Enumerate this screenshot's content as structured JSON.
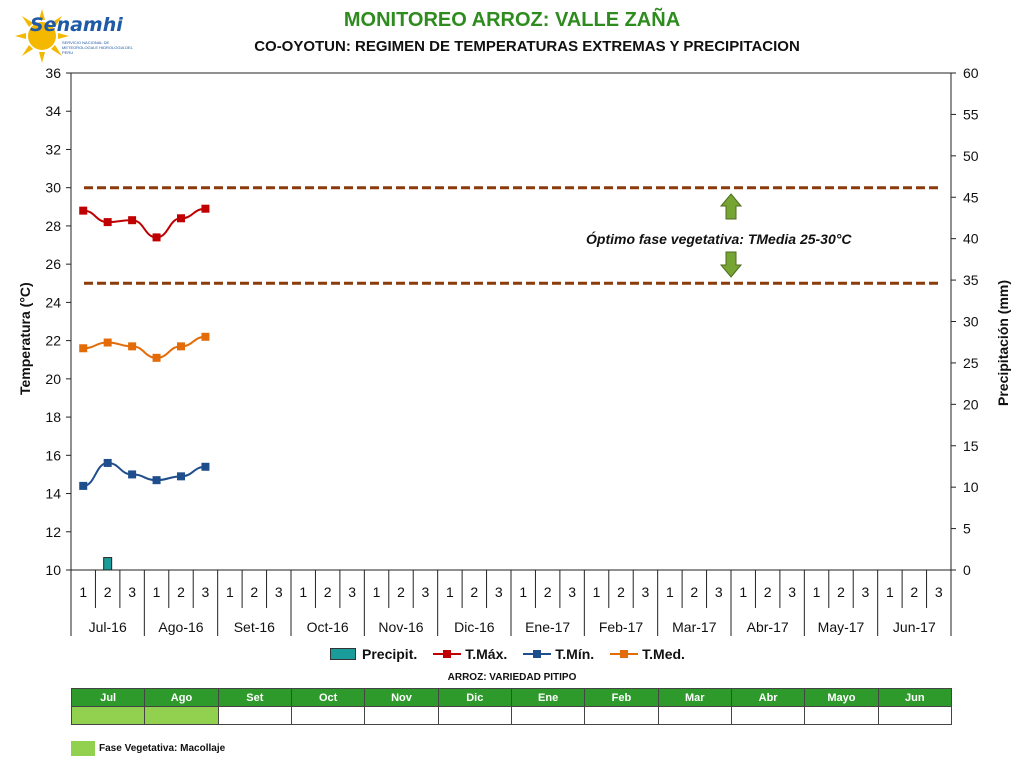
{
  "header": {
    "logo_text": "Senamhi",
    "logo_sub": "SERVICIO NACIONAL DE METEOROLOGIA E HIDROLOGIA DEL PERU",
    "title": "MONITOREO ARROZ: VALLE ZAÑA",
    "subtitle": "CO-OYOTUN: REGIMEN DE TEMPERATURAS EXTREMAS Y PRECIPITACION"
  },
  "annotation": "Óptimo fase vegetativa: TMedia 25-30°C",
  "chart_data": {
    "type": "line",
    "title": "CO-OYOTUN: REGIMEN DE TEMPERATURAS EXTREMAS Y PRECIPITACION",
    "ylabel": "Temperatura (°C)",
    "y2label": "Precipitación (mm)",
    "ylim": [
      10,
      36
    ],
    "y2lim": [
      0,
      60
    ],
    "yticks": [
      10,
      12,
      14,
      16,
      18,
      20,
      22,
      24,
      26,
      28,
      30,
      32,
      34,
      36
    ],
    "y2ticks": [
      0,
      5,
      10,
      15,
      20,
      25,
      30,
      35,
      40,
      45,
      50,
      55,
      60
    ],
    "months": [
      "Jul-16",
      "Ago-16",
      "Set-16",
      "Oct-16",
      "Nov-16",
      "Dic-16",
      "Ene-17",
      "Feb-17",
      "Mar-17",
      "Abr-17",
      "May-17",
      "Jun-17"
    ],
    "dekads": [
      "1",
      "2",
      "3"
    ],
    "optimal_range": [
      25,
      30
    ],
    "series": [
      {
        "name": "Precipit.",
        "kind": "bar",
        "axis": "right",
        "color": "#1a9d9a",
        "values": [
          0,
          1.5,
          0,
          0,
          0,
          0
        ]
      },
      {
        "name": "T.Máx.",
        "kind": "line",
        "axis": "left",
        "color": "#c00000",
        "values": [
          28.8,
          28.2,
          28.3,
          27.4,
          28.4,
          28.9
        ]
      },
      {
        "name": "T.Mín.",
        "kind": "line",
        "axis": "left",
        "color": "#1f4e8c",
        "values": [
          14.4,
          15.6,
          15.0,
          14.7,
          14.9,
          15.4
        ]
      },
      {
        "name": "T.Med.",
        "kind": "line",
        "axis": "left",
        "color": "#e36c09",
        "values": [
          21.6,
          21.9,
          21.7,
          21.1,
          21.7,
          22.2
        ]
      }
    ],
    "optimal_line_color": "#8b3a0a",
    "arrow_color": "#77a534",
    "grid": false,
    "legend_position": "bottom"
  },
  "phenology": {
    "title": "ARROZ: VARIEDAD PITIPO",
    "months": [
      "Jul",
      "Ago",
      "Set",
      "Oct",
      "Nov",
      "Dic",
      "Ene",
      "Feb",
      "Mar",
      "Abr",
      "Mayo",
      "Jun"
    ],
    "active_months": [
      "Jul",
      "Ago"
    ],
    "phase_label": "Fase Vegetativa: Macollaje",
    "phase_color": "#92d050",
    "header_color": "#2f9a2c"
  }
}
